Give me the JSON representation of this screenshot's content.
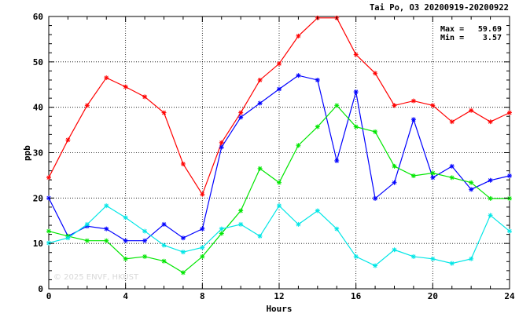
{
  "chart_data": {
    "type": "line",
    "title": "Tai Po, O3 20200919-20200922",
    "xlabel": "Hours",
    "ylabel": "ppb",
    "xlim": [
      0,
      24
    ],
    "ylim": [
      0,
      60
    ],
    "x_ticks": [
      0,
      4,
      8,
      12,
      16,
      20,
      24
    ],
    "y_ticks": [
      0,
      10,
      20,
      30,
      40,
      50,
      60
    ],
    "grid": true,
    "x": [
      0,
      1,
      2,
      3,
      4,
      5,
      6,
      7,
      8,
      9,
      10,
      11,
      12,
      13,
      14,
      15,
      16,
      17,
      18,
      19,
      20,
      21,
      22,
      23,
      24
    ],
    "series": [
      {
        "color": "#ff0000",
        "values": [
          24.5,
          32.8,
          40.4,
          46.5,
          44.5,
          42.3,
          38.8,
          27.5,
          20.8,
          32.2,
          38.8,
          46.0,
          49.6,
          55.7,
          59.69,
          59.69,
          51.6,
          47.5,
          40.4,
          41.4,
          40.4,
          36.8,
          39.3,
          36.8,
          38.8
        ]
      },
      {
        "color": "#0000ff",
        "values": [
          20.0,
          11.6,
          13.8,
          13.2,
          10.6,
          10.6,
          14.2,
          11.2,
          13.2,
          31.2,
          37.8,
          40.9,
          44.0,
          47.0,
          46.0,
          28.2,
          43.4,
          19.9,
          23.4,
          37.3,
          24.5,
          27.0,
          21.9,
          23.9,
          24.9
        ]
      },
      {
        "color": "#00e600",
        "values": [
          12.7,
          11.6,
          10.6,
          10.6,
          6.6,
          7.1,
          6.1,
          3.57,
          7.1,
          12.2,
          17.2,
          26.5,
          23.4,
          31.6,
          35.7,
          40.4,
          35.7,
          34.6,
          27.0,
          24.9,
          25.5,
          24.5,
          23.4,
          19.9,
          19.9
        ]
      },
      {
        "color": "#00e6e6",
        "values": [
          10.1,
          11.2,
          14.2,
          18.3,
          15.7,
          12.7,
          9.6,
          8.1,
          9.1,
          13.2,
          14.2,
          11.6,
          18.3,
          14.2,
          17.2,
          13.2,
          7.1,
          5.1,
          8.6,
          7.1,
          6.6,
          5.6,
          6.6,
          16.2,
          12.7
        ]
      }
    ],
    "stats": {
      "max_label": "Max =",
      "max_value": "59.69",
      "min_label": "Min =",
      "min_value": "3.57"
    },
    "watermark": "© 2025 ENVF, HKUST"
  }
}
